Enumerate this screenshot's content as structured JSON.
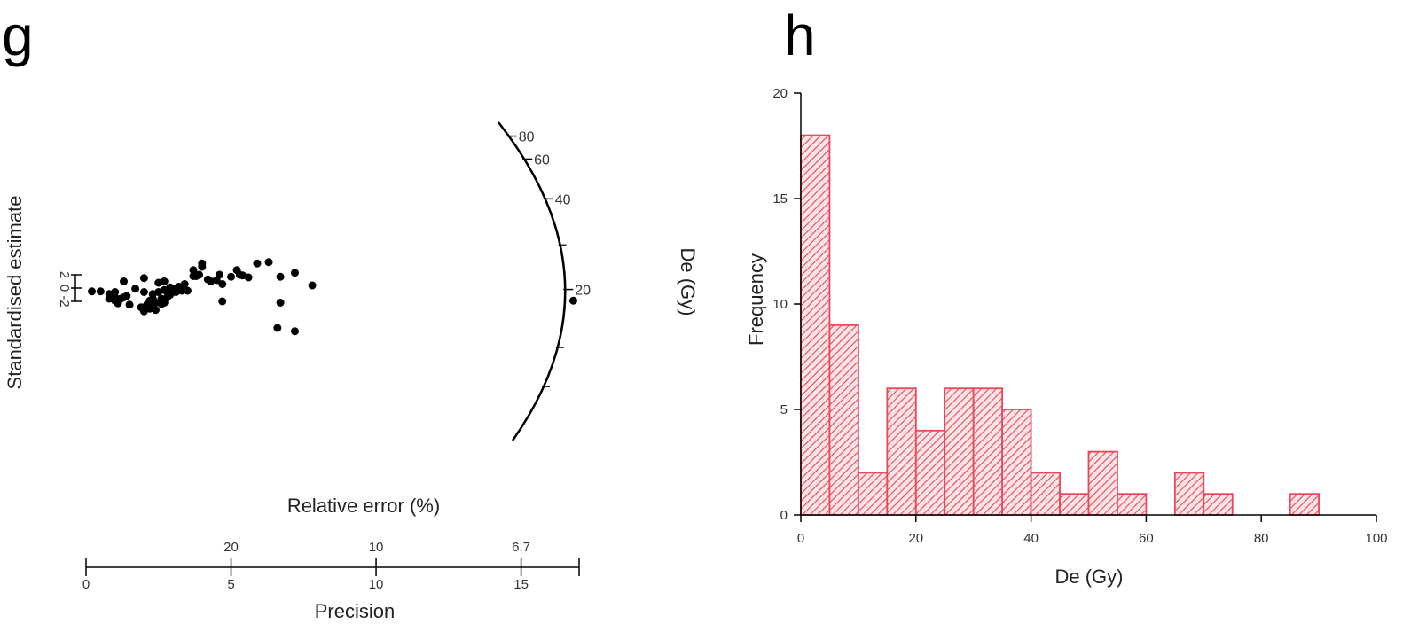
{
  "chart_data": [
    {
      "type": "scatter",
      "panel_label": "g",
      "ylabel": "Standardised estimate",
      "xlabel_top": "Relative error (%)",
      "xlabel": "Precision",
      "arc_label": "De (Gy)",
      "y_ticks": [
        "2",
        "0",
        "-2"
      ],
      "precision_ticks": [
        "0",
        "5",
        "10",
        "15"
      ],
      "precision_range": [
        0,
        17
      ],
      "relative_error_ticks": [
        {
          "label": "20",
          "precision": 5
        },
        {
          "label": "10",
          "precision": 10
        },
        {
          "label": "6.7",
          "precision": 15
        }
      ],
      "arc_ticks": [
        "80",
        "60",
        "40",
        "20"
      ],
      "points": [
        [
          0.2,
          -0.5
        ],
        [
          0.5,
          -0.5
        ],
        [
          0.8,
          -0.9
        ],
        [
          1.0,
          -0.6
        ],
        [
          0.8,
          -1.6
        ],
        [
          1.0,
          -1.4
        ],
        [
          1.2,
          -1.6
        ],
        [
          1.0,
          -1.9
        ],
        [
          1.1,
          -2.3
        ],
        [
          1.3,
          -1.4
        ],
        [
          1.4,
          -1.2
        ],
        [
          1.5,
          -2.5
        ],
        [
          1.3,
          1.0
        ],
        [
          1.7,
          -0.1
        ],
        [
          1.9,
          -2.9
        ],
        [
          2.0,
          -0.6
        ],
        [
          2.0,
          -3.5
        ],
        [
          2.1,
          -2.5
        ],
        [
          2.0,
          1.5
        ],
        [
          2.2,
          -1.9
        ],
        [
          2.2,
          -3.1
        ],
        [
          2.3,
          -0.9
        ],
        [
          2.3,
          -1.6
        ],
        [
          2.3,
          -2.2
        ],
        [
          2.4,
          -2.2
        ],
        [
          2.4,
          -3.3
        ],
        [
          2.5,
          0.8
        ],
        [
          2.5,
          -0.6
        ],
        [
          2.6,
          -1.6
        ],
        [
          2.6,
          -2.4
        ],
        [
          2.7,
          -0.3
        ],
        [
          2.7,
          -2.2
        ],
        [
          2.7,
          1.0
        ],
        [
          2.8,
          -0.6
        ],
        [
          2.8,
          -1.4
        ],
        [
          2.9,
          0.1
        ],
        [
          2.9,
          -1.0
        ],
        [
          3.0,
          -0.3
        ],
        [
          3.1,
          -0.1
        ],
        [
          3.1,
          -0.6
        ],
        [
          3.2,
          0.2
        ],
        [
          3.3,
          -0.4
        ],
        [
          3.4,
          0.6
        ],
        [
          3.5,
          -0.4
        ],
        [
          3.7,
          1.8
        ],
        [
          3.7,
          2.7
        ],
        [
          3.8,
          1.8
        ],
        [
          3.9,
          2.0
        ],
        [
          4.0,
          3.2
        ],
        [
          4.0,
          3.7
        ],
        [
          4.2,
          1.3
        ],
        [
          4.3,
          1.0
        ],
        [
          4.5,
          1.2
        ],
        [
          4.6,
          2.0
        ],
        [
          4.7,
          0.6
        ],
        [
          4.7,
          -2.0
        ],
        [
          5.0,
          1.7
        ],
        [
          5.2,
          2.7
        ],
        [
          5.3,
          2.0
        ],
        [
          5.4,
          1.9
        ],
        [
          5.6,
          1.6
        ],
        [
          5.9,
          3.7
        ],
        [
          6.3,
          3.9
        ],
        [
          6.6,
          -6.0
        ],
        [
          6.7,
          1.7
        ],
        [
          6.7,
          -2.2
        ],
        [
          7.2,
          2.3
        ],
        [
          7.2,
          -6.5
        ],
        [
          7.8,
          0.4
        ],
        [
          16.8,
          -1.9
        ]
      ]
    },
    {
      "type": "bar",
      "panel_label": "h",
      "xlabel": "De (Gy)",
      "ylabel": "Frequency",
      "xlim": [
        0,
        100
      ],
      "ylim": [
        0,
        20
      ],
      "x_ticks": [
        "0",
        "20",
        "40",
        "60",
        "80",
        "100"
      ],
      "y_ticks": [
        "0",
        "5",
        "10",
        "15",
        "20"
      ],
      "bin_width": 5,
      "bin_starts": [
        0,
        5,
        10,
        15,
        20,
        25,
        30,
        35,
        40,
        45,
        50,
        55,
        60,
        65,
        70,
        75,
        80,
        85
      ],
      "values": [
        18,
        9,
        2,
        6,
        4,
        6,
        6,
        5,
        2,
        1,
        3,
        1,
        0,
        2,
        1,
        0,
        0,
        1
      ],
      "bar_color": "#e8485a"
    }
  ]
}
